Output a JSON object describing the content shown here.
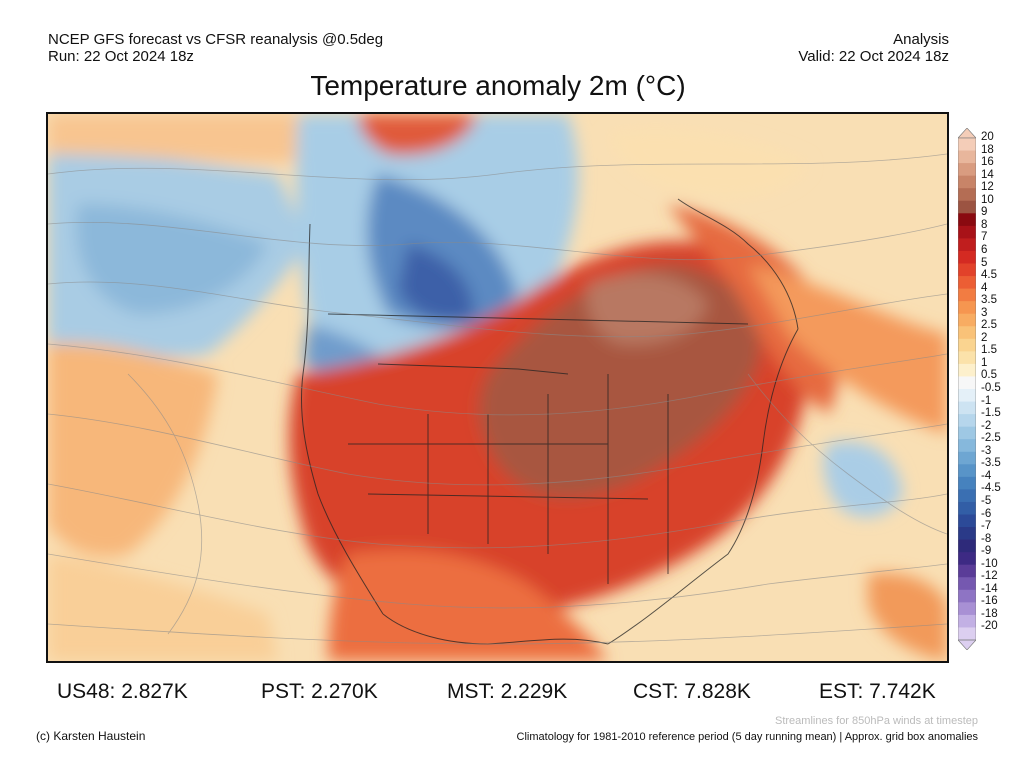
{
  "header": {
    "left_line1": "NCEP GFS forecast vs CFSR reanalysis @0.5deg",
    "left_line2": "Run: 22 Oct 2024 18z",
    "right_line1": "Analysis",
    "right_line2": "Valid: 22 Oct 2024 18z"
  },
  "title": "Temperature anomaly 2m (°C)",
  "colorbar": {
    "labels": [
      "20",
      "18",
      "16",
      "14",
      "12",
      "10",
      "9",
      "8",
      "7",
      "6",
      "5",
      "4.5",
      "4",
      "3.5",
      "3",
      "2.5",
      "2",
      "1.5",
      "1",
      "0.5",
      "-0.5",
      "-1",
      "-1.5",
      "-2",
      "-2.5",
      "-3",
      "-3.5",
      "-4",
      "-4.5",
      "-5",
      "-6",
      "-7",
      "-8",
      "-9",
      "-10",
      "-12",
      "-14",
      "-16",
      "-18",
      "-20"
    ],
    "colors": [
      "#f4cdb8",
      "#e8b69c",
      "#d99c80",
      "#c88468",
      "#b46d54",
      "#9c5442",
      "#8a0a10",
      "#a81218",
      "#c01e1e",
      "#d42a22",
      "#e2422a",
      "#ec5e34",
      "#f27c42",
      "#f69650",
      "#f8ac62",
      "#f9c278",
      "#fad490",
      "#fbe2aa",
      "#fdf0cc",
      "#f7f7f7",
      "#e4f0f8",
      "#cde3f2",
      "#b6d6ec",
      "#9ec8e4",
      "#86b8dc",
      "#6ea6d2",
      "#5894c8",
      "#4682be",
      "#3a6fb2",
      "#325ea6",
      "#2c4a98",
      "#2a3a88",
      "#2e2a7a",
      "#3d2a84",
      "#5a3c98",
      "#7558b0",
      "#8e74c4",
      "#a890d4",
      "#c2b0e4",
      "#dccff0"
    ]
  },
  "stats": {
    "us48": "US48: 2.827K",
    "pst": "PST: 2.270K",
    "mst": "MST: 2.229K",
    "cst": "CST: 7.828K",
    "est": "EST: 7.742K"
  },
  "footer": {
    "credit": "(c) Karsten Haustein",
    "streamlines_note": "Streamlines for 850hPa winds at timestep",
    "climatology_note": "Climatology for 1981-2010 reference period (5 day running mean) | Approx. grid box anomalies"
  }
}
